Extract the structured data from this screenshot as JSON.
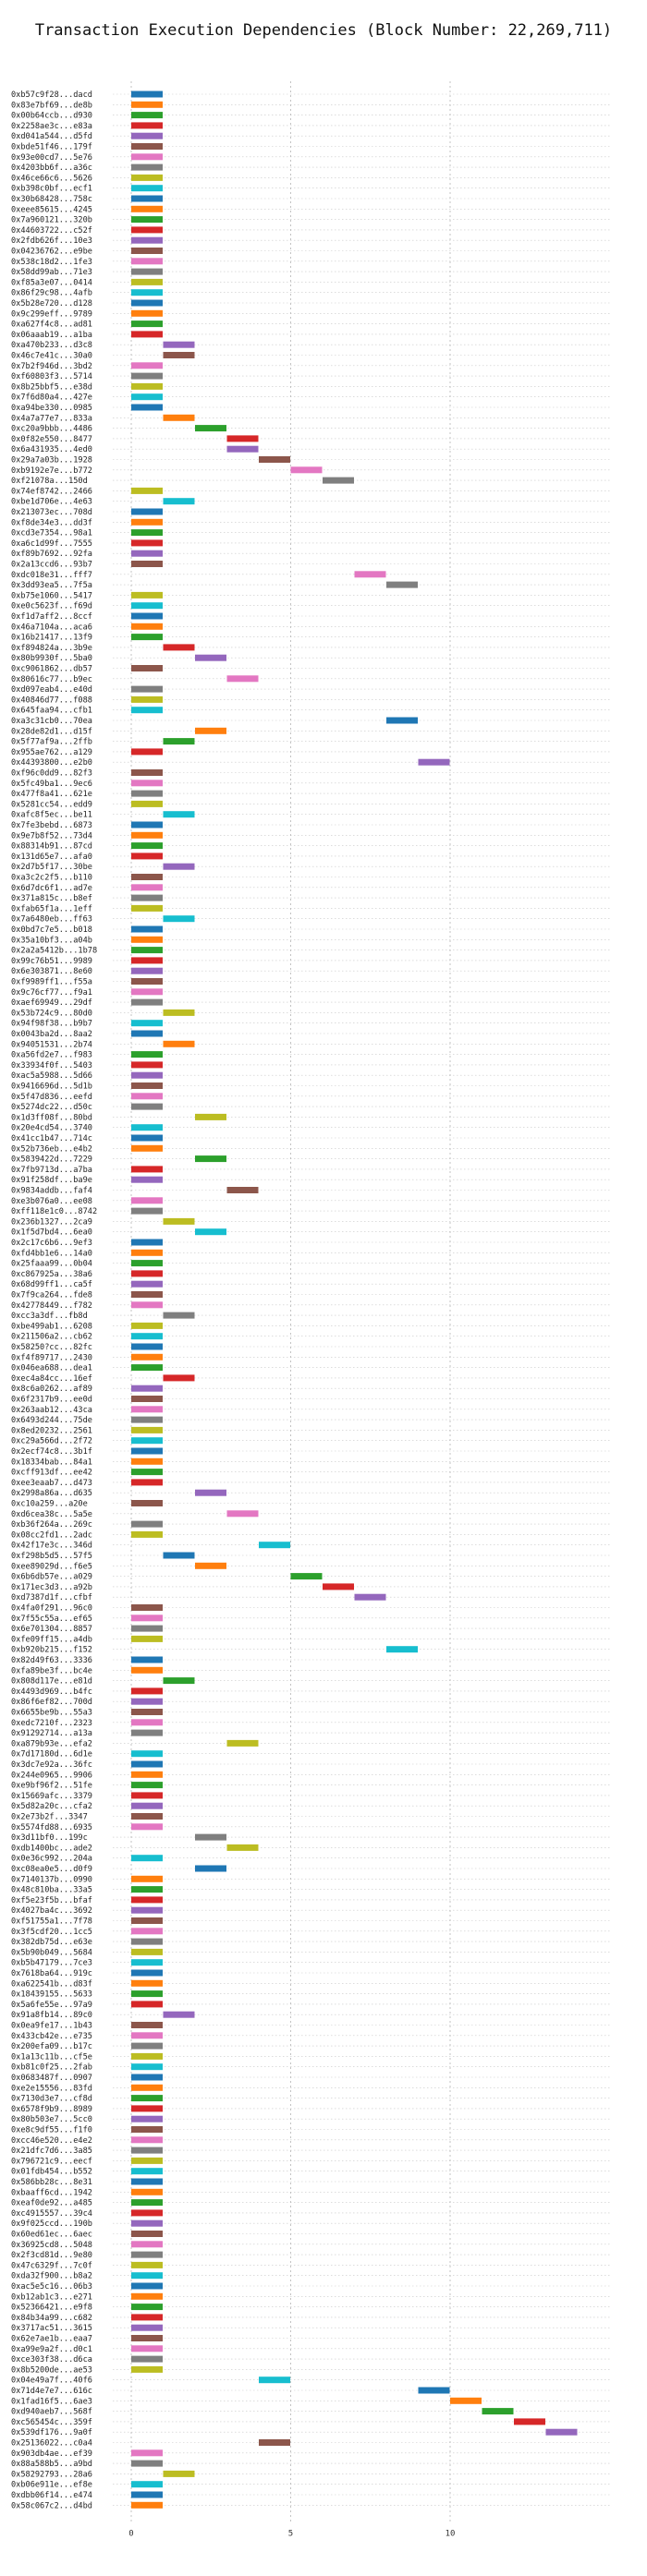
{
  "chart_data": {
    "type": "bar",
    "orientation": "horizontal",
    "title": "Transaction Execution Dependencies (Block Number: 22,269,711)",
    "xlabel": "",
    "ylabel": "",
    "xlim": [
      -1,
      15
    ],
    "xticks": [
      0,
      5,
      10
    ],
    "grid": true,
    "palette": [
      "#1f77b4",
      "#ff7f0e",
      "#2ca02c",
      "#d62728",
      "#9467bd",
      "#8c564b",
      "#e377c2",
      "#7f7f7f",
      "#bcbd22",
      "#17becf"
    ],
    "transactions": [
      {
        "label": "0xb57c9f28...dacd",
        "start": 0
      },
      {
        "label": "0x83e7bf69...de8b",
        "start": 0
      },
      {
        "label": "0x00b64ccb...d930",
        "start": 0
      },
      {
        "label": "0x2258ae3c...e83a",
        "start": 0
      },
      {
        "label": "0xd041a544...d5fd",
        "start": 0
      },
      {
        "label": "0xbde51f46...179f",
        "start": 0
      },
      {
        "label": "0x93e00cd7...5e76",
        "start": 0
      },
      {
        "label": "0x4203bb6f...a36c",
        "start": 0
      },
      {
        "label": "0x46ce66c6...5626",
        "start": 0
      },
      {
        "label": "0xb398c0bf...ecf1",
        "start": 0
      },
      {
        "label": "0x30b68428...758c",
        "start": 0
      },
      {
        "label": "0xeee85615...4245",
        "start": 0
      },
      {
        "label": "0x7a960121...320b",
        "start": 0
      },
      {
        "label": "0x44603722...c52f",
        "start": 0
      },
      {
        "label": "0x2fdb626f...10e3",
        "start": 0
      },
      {
        "label": "0x04236762...e9be",
        "start": 0
      },
      {
        "label": "0x538c18d2...1fe3",
        "start": 0
      },
      {
        "label": "0x58dd99ab...71e3",
        "start": 0
      },
      {
        "label": "0xf85a3e07...0414",
        "start": 0
      },
      {
        "label": "0x86f29c98...4afb",
        "start": 0
      },
      {
        "label": "0x5b28e720...d128",
        "start": 0
      },
      {
        "label": "0x9c299eff...9789",
        "start": 0
      },
      {
        "label": "0xa627f4c8...ad81",
        "start": 0
      },
      {
        "label": "0x06aaab19...a1ba",
        "start": 0
      },
      {
        "label": "0xa470b233...d3c8",
        "start": 1
      },
      {
        "label": "0x46c7e41c...30a0",
        "start": 1
      },
      {
        "label": "0x7b2f946d...3bd2",
        "start": 0
      },
      {
        "label": "0xf60803f3...5714",
        "start": 0
      },
      {
        "label": "0x8b25bbf5...e38d",
        "start": 0
      },
      {
        "label": "0x7f6d80a4...427e",
        "start": 0
      },
      {
        "label": "0xa94be330...0985",
        "start": 0
      },
      {
        "label": "0x4a7a77e7...833a",
        "start": 1
      },
      {
        "label": "0xc20a9bbb...4486",
        "start": 2
      },
      {
        "label": "0x0f82e550...8477",
        "start": 3
      },
      {
        "label": "0x6a431935...4ed0",
        "start": 3
      },
      {
        "label": "0x29a7a03b...1928",
        "start": 4
      },
      {
        "label": "0xb9192e7e...b772",
        "start": 5
      },
      {
        "label": "0xf21078a...150d",
        "start": 6
      },
      {
        "label": "0x74ef8742...2466",
        "start": 0
      },
      {
        "label": "0xbe1d706e...4e63",
        "start": 1
      },
      {
        "label": "0x213073ec...708d",
        "start": 0
      },
      {
        "label": "0xf8de34e3...dd3f",
        "start": 0
      },
      {
        "label": "0xcd3e7354...98a1",
        "start": 0
      },
      {
        "label": "0xa6c1d99f...7555",
        "start": 0
      },
      {
        "label": "0xf89b7692...92fa",
        "start": 0
      },
      {
        "label": "0x2a13ccd6...93b7",
        "start": 0
      },
      {
        "label": "0xdc018e31...fff7",
        "start": 7
      },
      {
        "label": "0x3dd93ea5...7f5a",
        "start": 8
      },
      {
        "label": "0xb75e1060...5417",
        "start": 0
      },
      {
        "label": "0xe0c5623f...f69d",
        "start": 0
      },
      {
        "label": "0xf1d7aff2...8ccf",
        "start": 0
      },
      {
        "label": "0x46a7104a...aca6",
        "start": 0
      },
      {
        "label": "0x16b21417...13f9",
        "start": 0
      },
      {
        "label": "0xf894824a...3b9e",
        "start": 1
      },
      {
        "label": "0x80b9930f...5ba0",
        "start": 2
      },
      {
        "label": "0xc9061862...db57",
        "start": 0
      },
      {
        "label": "0x80616c77...b9ec",
        "start": 3
      },
      {
        "label": "0xd097eab4...e40d",
        "start": 0
      },
      {
        "label": "0x40846d77...f088",
        "start": 0
      },
      {
        "label": "0x645faa94...cfb1",
        "start": 0
      },
      {
        "label": "0xa3c31cb0...70ea",
        "start": 8
      },
      {
        "label": "0x28de82d1...d15f",
        "start": 2
      },
      {
        "label": "0x5f77af9a...2ffb",
        "start": 1
      },
      {
        "label": "0x955ae762...a129",
        "start": 0
      },
      {
        "label": "0x44393800...e2b0",
        "start": 9
      },
      {
        "label": "0xf96c0dd9...82f3",
        "start": 0
      },
      {
        "label": "0x5fc49ba1...9ec6",
        "start": 0
      },
      {
        "label": "0x477f8a41...621e",
        "start": 0
      },
      {
        "label": "0x5281cc54...edd9",
        "start": 0
      },
      {
        "label": "0xafc8f5ec...be11",
        "start": 1
      },
      {
        "label": "0x7fe3bebd...6873",
        "start": 0
      },
      {
        "label": "0x9e7b8f52...73d4",
        "start": 0
      },
      {
        "label": "0x88314b91...87cd",
        "start": 0
      },
      {
        "label": "0x131d65e7...afa0",
        "start": 0
      },
      {
        "label": "0x2d7b5f17...30be",
        "start": 1
      },
      {
        "label": "0xa3c2c2f5...b110",
        "start": 0
      },
      {
        "label": "0x6d7dc6f1...ad7e",
        "start": 0
      },
      {
        "label": "0x371a815c...b8ef",
        "start": 0
      },
      {
        "label": "0xfab65f1a...1eff",
        "start": 0
      },
      {
        "label": "0x7a6480eb...ff63",
        "start": 1
      },
      {
        "label": "0x0bd7c7e5...b018",
        "start": 0
      },
      {
        "label": "0x35a10bf3...a04b",
        "start": 0
      },
      {
        "label": "0x2a2a5412b...1b78",
        "start": 0
      },
      {
        "label": "0x99c76b51...9989",
        "start": 0
      },
      {
        "label": "0x6e303871...8e60",
        "start": 0
      },
      {
        "label": "0xf9989ff1...f55a",
        "start": 0
      },
      {
        "label": "0x9c76cf77...f9a1",
        "start": 0
      },
      {
        "label": "0xaef69949...29df",
        "start": 0
      },
      {
        "label": "0x53b724c9...80d0",
        "start": 1
      },
      {
        "label": "0x94f98f38...b9b7",
        "start": 0
      },
      {
        "label": "0x0043ba2d...8aa2",
        "start": 0
      },
      {
        "label": "0x94051531...2b74",
        "start": 1
      },
      {
        "label": "0xa56fd2e7...f983",
        "start": 0
      },
      {
        "label": "0x33934f0f...5403",
        "start": 0
      },
      {
        "label": "0xac5a5988...5d66",
        "start": 0
      },
      {
        "label": "0x9416696d...5d1b",
        "start": 0
      },
      {
        "label": "0x5f47d836...eefd",
        "start": 0
      },
      {
        "label": "0x5274dc22...d50c",
        "start": 0
      },
      {
        "label": "0x1d3ff08f...80bd",
        "start": 2
      },
      {
        "label": "0x20e4cd54...3740",
        "start": 0
      },
      {
        "label": "0x41cc1b47...714c",
        "start": 0
      },
      {
        "label": "0x52b736eb...e4b2",
        "start": 0
      },
      {
        "label": "0x5839422d...7229",
        "start": 2
      },
      {
        "label": "0x7fb9713d...a7ba",
        "start": 0
      },
      {
        "label": "0x91f258df...ba9e",
        "start": 0
      },
      {
        "label": "0x9834addb...faf4",
        "start": 3
      },
      {
        "label": "0xe3b076a0...ee08",
        "start": 0
      },
      {
        "label": "0xff118e1c0...8742",
        "start": 0
      },
      {
        "label": "0x236b1327...2ca9",
        "start": 1
      },
      {
        "label": "0x1f5d7bd4...6ea0",
        "start": 2
      },
      {
        "label": "0x2c17c6b6...9ef3",
        "start": 0
      },
      {
        "label": "0xfd4bb1e6...14a0",
        "start": 0
      },
      {
        "label": "0x25faaa99...0b04",
        "start": 0
      },
      {
        "label": "0xc867925a...38a6",
        "start": 0
      },
      {
        "label": "0x68d99ff1...ca5f",
        "start": 0
      },
      {
        "label": "0x7f9ca264...fde8",
        "start": 0
      },
      {
        "label": "0x42778449...f782",
        "start": 0
      },
      {
        "label": "0xcc3a3df...fb8d",
        "start": 1
      },
      {
        "label": "0xbe499ab1...6208",
        "start": 0
      },
      {
        "label": "0x211506a2...cb62",
        "start": 0
      },
      {
        "label": "0x58250?cc...82fc",
        "start": 0
      },
      {
        "label": "0xf4f89717...2430",
        "start": 0
      },
      {
        "label": "0x046ea688...dea1",
        "start": 0
      },
      {
        "label": "0xec4a84cc...16ef",
        "start": 1
      },
      {
        "label": "0x8c6a0262...af89",
        "start": 0
      },
      {
        "label": "0x6f2317b9...ee0d",
        "start": 0
      },
      {
        "label": "0x263aab12...43ca",
        "start": 0
      },
      {
        "label": "0x6493d244...75de",
        "start": 0
      },
      {
        "label": "0x8ed20232...2561",
        "start": 0
      },
      {
        "label": "0xc29a566d...2f72",
        "start": 0
      },
      {
        "label": "0x2ecf74c8...3b1f",
        "start": 0
      },
      {
        "label": "0x18334bab...84a1",
        "start": 0
      },
      {
        "label": "0xcff913df...ee42",
        "start": 0
      },
      {
        "label": "0xee3eaab7...d473",
        "start": 0
      },
      {
        "label": "0x2998a86a...d635",
        "start": 2
      },
      {
        "label": "0xc10a259...a20e",
        "start": 0
      },
      {
        "label": "0xd6cea38c...5a5e",
        "start": 3
      },
      {
        "label": "0xb36f264a...269c",
        "start": 0
      },
      {
        "label": "0x08cc2fd1...2adc",
        "start": 0
      },
      {
        "label": "0x42f17e3c...346d",
        "start": 4
      },
      {
        "label": "0xf298b5d5...57f5",
        "start": 1
      },
      {
        "label": "0xee89029d...f6e5",
        "start": 2
      },
      {
        "label": "0x6b6db57e...a029",
        "start": 5
      },
      {
        "label": "0x171ec3d3...a92b",
        "start": 6
      },
      {
        "label": "0xd7387d1f...cfbf",
        "start": 7
      },
      {
        "label": "0x4fa0f291...96c0",
        "start": 0
      },
      {
        "label": "0x7f55c55a...ef65",
        "start": 0
      },
      {
        "label": "0x6e701304...8857",
        "start": 0
      },
      {
        "label": "0xfe09ff15...a4db",
        "start": 0
      },
      {
        "label": "0xb920b215...f152",
        "start": 8
      },
      {
        "label": "0x82d49f63...3336",
        "start": 0
      },
      {
        "label": "0xfa89be3f...bc4e",
        "start": 0
      },
      {
        "label": "0x808d117e...e81d",
        "start": 1
      },
      {
        "label": "0x4493d969...b4fc",
        "start": 0
      },
      {
        "label": "0x86f6ef82...700d",
        "start": 0
      },
      {
        "label": "0x6655be9b...55a3",
        "start": 0
      },
      {
        "label": "0xedc7210f...2323",
        "start": 0
      },
      {
        "label": "0x91292714...a13a",
        "start": 0
      },
      {
        "label": "0xa879b93e...efa2",
        "start": 3
      },
      {
        "label": "0x7d17180d...6d1e",
        "start": 0
      },
      {
        "label": "0x3dc7e92a...36fc",
        "start": 0
      },
      {
        "label": "0x244e0965...9906",
        "start": 0
      },
      {
        "label": "0xe9bf96f2...51fe",
        "start": 0
      },
      {
        "label": "0x15669afc...3379",
        "start": 0
      },
      {
        "label": "0x5d82a20c...cfa2",
        "start": 0
      },
      {
        "label": "0x2e73b2f...3347",
        "start": 0
      },
      {
        "label": "0x5574fd88...6935",
        "start": 0
      },
      {
        "label": "0x3d11bf0...199c",
        "start": 2
      },
      {
        "label": "0xdb1400bc...ade2",
        "start": 3
      },
      {
        "label": "0x0e36c992...204a",
        "start": 0
      },
      {
        "label": "0xc08ea0e5...d0f9",
        "start": 2
      },
      {
        "label": "0x7140137b...0990",
        "start": 0
      },
      {
        "label": "0x48c810ba...33a5",
        "start": 0
      },
      {
        "label": "0xf5e23f5b...bfaf",
        "start": 0
      },
      {
        "label": "0x4027ba4c...3692",
        "start": 0
      },
      {
        "label": "0xf51755a1...7f78",
        "start": 0
      },
      {
        "label": "0x3f5cdf20...1cc5",
        "start": 0
      },
      {
        "label": "0x382db75d...e63e",
        "start": 0
      },
      {
        "label": "0x5b90b049...5684",
        "start": 0
      },
      {
        "label": "0xb5b47179...7ce3",
        "start": 0
      },
      {
        "label": "0x7618ba64...919c",
        "start": 0
      },
      {
        "label": "0xa622541b...d83f",
        "start": 0
      },
      {
        "label": "0x18439155...5633",
        "start": 0
      },
      {
        "label": "0x5a6fe55e...97a9",
        "start": 0
      },
      {
        "label": "0x91a8fb14...89c0",
        "start": 1
      },
      {
        "label": "0x0ea9fe17...1b43",
        "start": 0
      },
      {
        "label": "0x433cb42e...e735",
        "start": 0
      },
      {
        "label": "0x200efa09...b17c",
        "start": 0
      },
      {
        "label": "0x1a13c11b...cf5e",
        "start": 0
      },
      {
        "label": "0xb81c0f25...2fab",
        "start": 0
      },
      {
        "label": "0x0683487f...0907",
        "start": 0
      },
      {
        "label": "0xe2e15556...83fd",
        "start": 0
      },
      {
        "label": "0x7130d3e7...cf8d",
        "start": 0
      },
      {
        "label": "0x6578f9b9...8989",
        "start": 0
      },
      {
        "label": "0x80b503e7...5cc0",
        "start": 0
      },
      {
        "label": "0xe8c9df55...f1f0",
        "start": 0
      },
      {
        "label": "0xcc46e520...e4e2",
        "start": 0
      },
      {
        "label": "0x21dfc7d6...3a85",
        "start": 0
      },
      {
        "label": "0x796721c9...eecf",
        "start": 0
      },
      {
        "label": "0x01fdb454...b552",
        "start": 0
      },
      {
        "label": "0x586bb28c...8e31",
        "start": 0
      },
      {
        "label": "0xbaaff6cd...1942",
        "start": 0
      },
      {
        "label": "0xeaf0de92...a485",
        "start": 0
      },
      {
        "label": "0xc4915557...39c4",
        "start": 0
      },
      {
        "label": "0x9f025ccd...190b",
        "start": 0
      },
      {
        "label": "0x60ed61ec...6aec",
        "start": 0
      },
      {
        "label": "0x36925cd8...5048",
        "start": 0
      },
      {
        "label": "0x2f3cd81d...9e80",
        "start": 0
      },
      {
        "label": "0x47c6329f...7c0f",
        "start": 0
      },
      {
        "label": "0xda32f900...b8a2",
        "start": 0
      },
      {
        "label": "0xac5e5c16...06b3",
        "start": 0
      },
      {
        "label": "0xb12ab1c3...e271",
        "start": 0
      },
      {
        "label": "0x52366421...e9f8",
        "start": 0
      },
      {
        "label": "0x84b34a99...c682",
        "start": 0
      },
      {
        "label": "0x3717ac51...3615",
        "start": 0
      },
      {
        "label": "0x62e7ae1b...eaa7",
        "start": 0
      },
      {
        "label": "0xa99e9a2f...d0c1",
        "start": 0
      },
      {
        "label": "0xce303f38...d6ca",
        "start": 0
      },
      {
        "label": "0x8b5200de...ae53",
        "start": 0
      },
      {
        "label": "0x04e49a7f...40f6",
        "start": 4
      },
      {
        "label": "0x71d4e7e7...616c",
        "start": 9
      },
      {
        "label": "0x1fad16f5...6ae3",
        "start": 10
      },
      {
        "label": "0xd940aeb7...568f",
        "start": 11
      },
      {
        "label": "0xc565454c...359f",
        "start": 12
      },
      {
        "label": "0x539df176...9a0f",
        "start": 13
      },
      {
        "label": "0x25136022...c0a4",
        "start": 4
      },
      {
        "label": "0x903db4ae...ef39",
        "start": 0
      },
      {
        "label": "0x88a588b5...a9bd",
        "start": 0
      },
      {
        "label": "0x58292793...28a6",
        "start": 1
      },
      {
        "label": "0xb06e911e...ef8e",
        "start": 0
      },
      {
        "label": "0xdbb06f14...e474",
        "start": 0
      },
      {
        "label": "0x58c067c2...d4bd",
        "start": 0
      }
    ]
  }
}
